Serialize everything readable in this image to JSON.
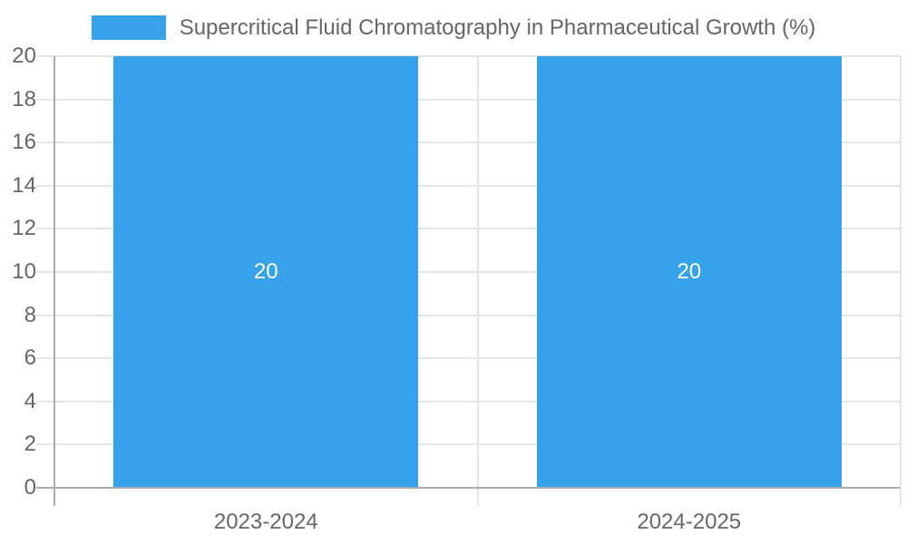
{
  "legend": {
    "label": "Supercritical Fluid Chromatography in Pharmaceutical Growth (%)"
  },
  "chart_data": {
    "type": "bar",
    "title": "Supercritical Fluid Chromatography in Pharmaceutical Growth (%)",
    "categories": [
      "2023-2024",
      "2024-2025"
    ],
    "series": [
      {
        "name": "Supercritical Fluid Chromatography in Pharmaceutical Growth (%)",
        "values": [
          20,
          20
        ]
      }
    ],
    "bar_value_labels": [
      "20",
      "20"
    ],
    "xlabel": "",
    "ylabel": "",
    "ylim": [
      0,
      20
    ],
    "yticks": [
      0,
      2,
      4,
      6,
      8,
      10,
      12,
      14,
      16,
      18,
      20
    ],
    "grid": true,
    "legend_position": "top-center",
    "colors": {
      "bar": "#36A2EB",
      "axis_text": "#666666",
      "bar_label": "#FFFFFF",
      "gridline": "#E5E5E5",
      "axis_line": "#ACACAC",
      "background": "#FFFFFF"
    }
  }
}
